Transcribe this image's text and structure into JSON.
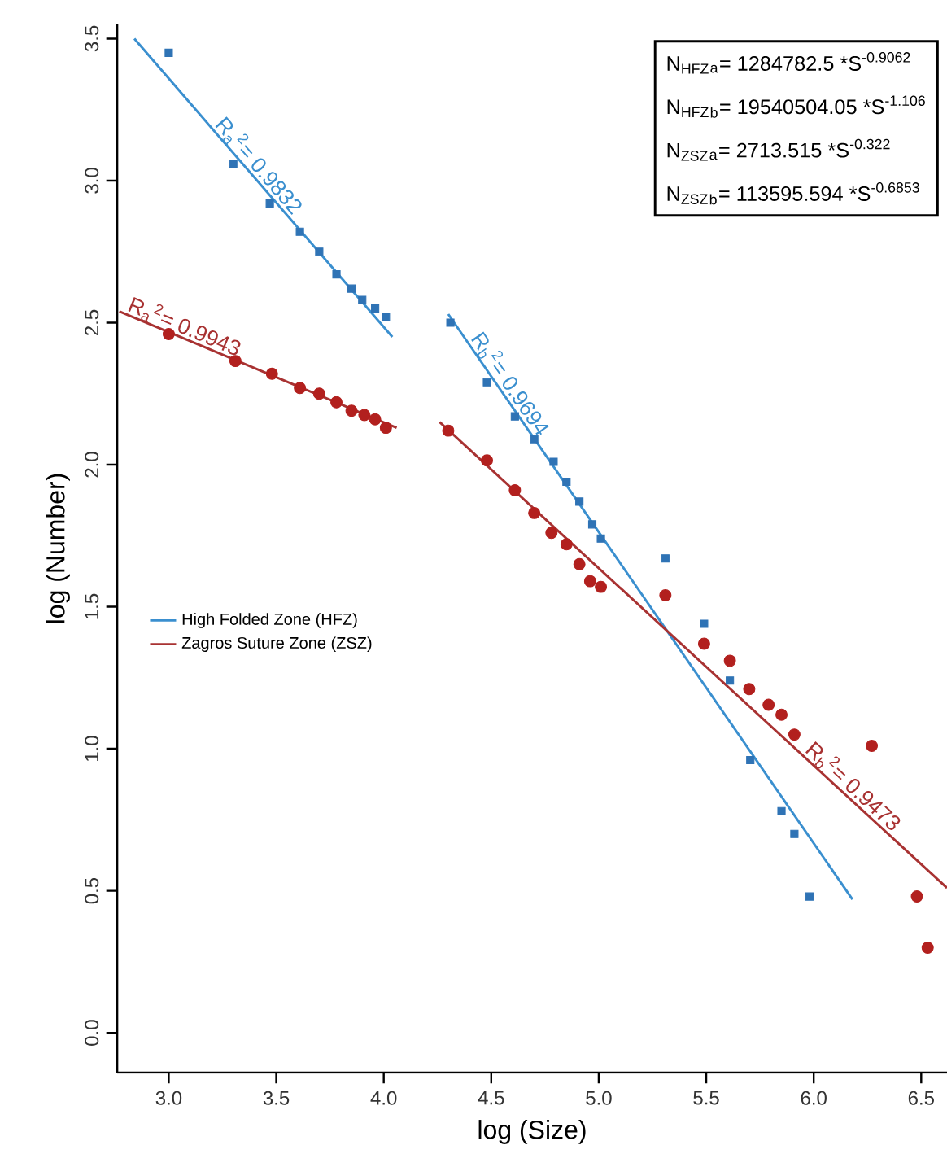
{
  "chart_data": {
    "type": "scatter",
    "xlabel": "log (Size)",
    "ylabel": "log (Number)",
    "xlim": [
      2.76,
      6.62
    ],
    "ylim": [
      -0.14,
      3.55
    ],
    "xticks": [
      {
        "value": 3,
        "label": "3.0"
      },
      {
        "value": 3.5,
        "label": "3.5"
      },
      {
        "value": 4,
        "label": "4.0"
      },
      {
        "value": 4.5,
        "label": "4.5"
      },
      {
        "value": 5,
        "label": "5.0"
      },
      {
        "value": 5.5,
        "label": "5.5"
      },
      {
        "value": 6,
        "label": "6.0"
      },
      {
        "value": 6.5,
        "label": "6.5"
      }
    ],
    "yticks": [
      {
        "value": 0,
        "label": "0.0"
      },
      {
        "value": 0.5,
        "label": "0.5"
      },
      {
        "value": 1,
        "label": "1.0"
      },
      {
        "value": 1.5,
        "label": "1.5"
      },
      {
        "value": 2,
        "label": "2.0"
      },
      {
        "value": 2.5,
        "label": "2.5"
      },
      {
        "value": 3,
        "label": "3.0"
      },
      {
        "value": 3.5,
        "label": "3.5"
      }
    ],
    "legend": "left",
    "series": [
      {
        "name": "High Folded Zone (HFZ)",
        "type": "line",
        "marker": "none",
        "color": "#3a8fcf",
        "x": [
          2.84,
          4.04
        ],
        "values": [
          3.5,
          2.45
        ]
      },
      {
        "name": "Zagros Suture Zone (ZSZ)",
        "type": "line",
        "marker": "none",
        "color": "#a83232",
        "x": [
          2.77,
          4.06
        ],
        "values": [
          2.54,
          2.13
        ]
      },
      {
        "type": "line",
        "marker": "none",
        "color": "#3a8fcf",
        "x": [
          4.3,
          6.18
        ],
        "values": [
          2.53,
          0.47
        ]
      },
      {
        "type": "line",
        "marker": "none",
        "color": "#a83232",
        "x": [
          4.26,
          6.62
        ],
        "values": [
          2.15,
          0.51
        ]
      },
      {
        "marker": "square",
        "color": "#2f73b5",
        "x": [
          3.0,
          3.3,
          3.47,
          3.61,
          3.7,
          3.78,
          3.85,
          3.9,
          3.96,
          4.01,
          4.31,
          4.48,
          4.61,
          4.7,
          4.79,
          4.85,
          4.91,
          4.97,
          5.01,
          5.31,
          5.49,
          5.61,
          5.705,
          5.85,
          5.91,
          5.98
        ],
        "values": [
          3.45,
          3.06,
          2.92,
          2.82,
          2.75,
          2.67,
          2.62,
          2.58,
          2.55,
          2.52,
          2.5,
          2.29,
          2.17,
          2.09,
          2.01,
          1.94,
          1.87,
          1.79,
          1.74,
          1.67,
          1.44,
          1.24,
          0.96,
          0.78,
          0.7,
          0.48
        ]
      },
      {
        "marker": "circle",
        "color": "#b2201e",
        "x": [
          3.0,
          3.31,
          3.48,
          3.61,
          3.7,
          3.78,
          3.85,
          3.91,
          3.96,
          4.01,
          4.3,
          4.48,
          4.61,
          4.7,
          4.78,
          4.85,
          4.91,
          4.96,
          5.01,
          5.31,
          5.49,
          5.61,
          5.7,
          5.79,
          5.85,
          5.91,
          6.27,
          6.48,
          6.53
        ],
        "values": [
          2.46,
          2.365,
          2.32,
          2.27,
          2.25,
          2.22,
          2.19,
          2.175,
          2.16,
          2.13,
          2.12,
          2.015,
          1.91,
          1.83,
          1.76,
          1.72,
          1.65,
          1.59,
          1.57,
          1.54,
          1.37,
          1.31,
          1.21,
          1.155,
          1.12,
          1.05,
          1.01,
          0.48,
          0.3
        ]
      }
    ],
    "annotations": [
      "R$_{a}$$^{2}$= 0.9832",
      "R$_{a}$$^{2}$= 0.9943",
      "R$_{b}$$^{2}$= 0.9694",
      "R$_{b}$$^{2}$= 0.9473",
      "N$_{HFZ}$$_{a}$= 1284782.5 *S$^{-0.9062}$",
      "N$_{HFZ}$$_{b}$= 19540504.05 *S$^{-1.106}$",
      "N$_{ZSZ}$$_{a}$= 2713.515 *S$^{-0.322}$",
      "N$_{ZSZ}$$_{b}$= 113595.594 *S$^{-0.6853}$"
    ]
  }
}
